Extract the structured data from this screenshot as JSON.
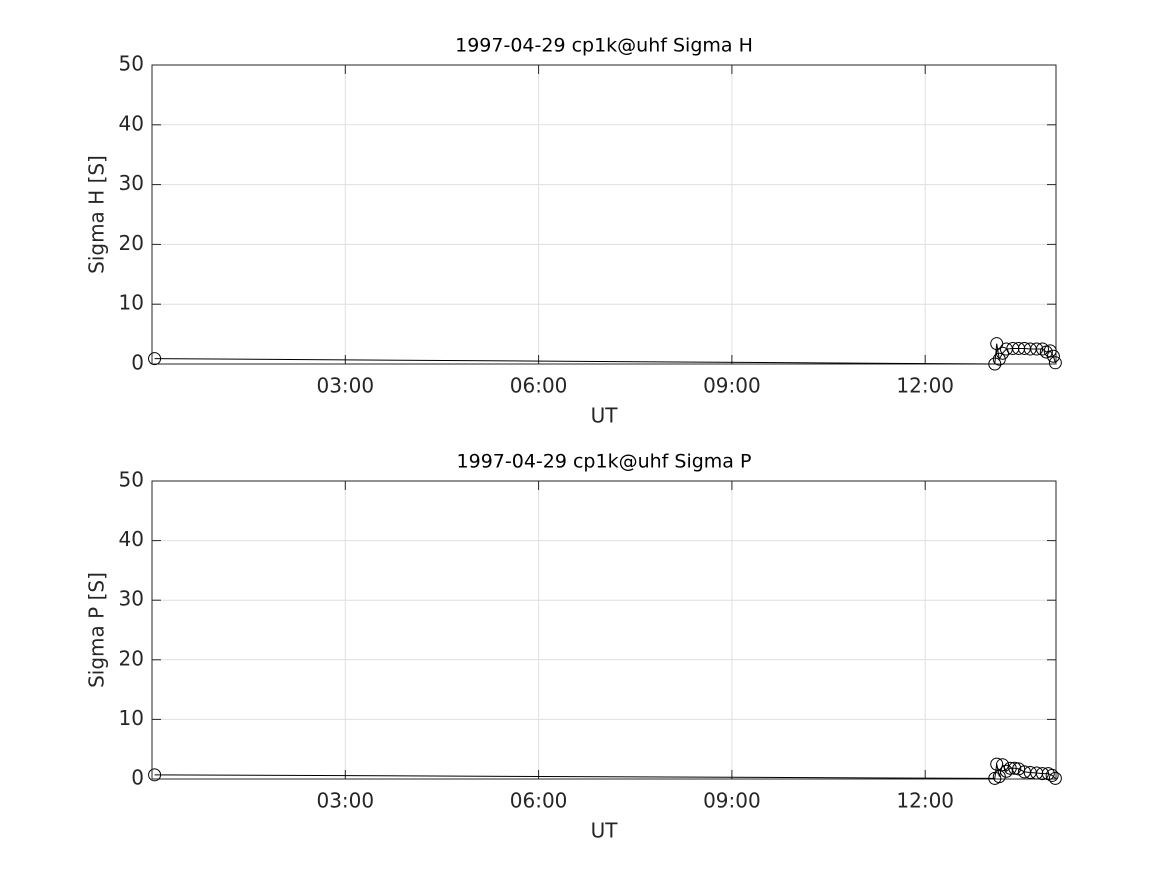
{
  "chart_data": [
    {
      "type": "line",
      "title": "1997-04-29  cp1k@uhf Sigma H",
      "xlabel": "UT",
      "ylabel": "Sigma H [S]",
      "x": [
        0.04,
        13.08,
        13.11,
        13.15,
        13.2,
        13.26,
        13.36,
        13.45,
        13.54,
        13.63,
        13.73,
        13.82,
        13.88,
        13.94,
        13.99,
        14.02
      ],
      "values": [
        0.9,
        0.0,
        3.4,
        0.8,
        1.8,
        2.5,
        2.6,
        2.6,
        2.6,
        2.5,
        2.5,
        2.5,
        2.0,
        2.2,
        1.3,
        0.2
      ],
      "color": "#000000",
      "marker": "o",
      "xlim": [
        0,
        14.03
      ],
      "xticks": [
        {
          "value": 3,
          "label": "03:00"
        },
        {
          "value": 6,
          "label": "06:00"
        },
        {
          "value": 9,
          "label": "09:00"
        },
        {
          "value": 12,
          "label": "12:00"
        }
      ],
      "ylim": [
        0,
        50
      ],
      "yticks": [
        0,
        10,
        20,
        30,
        40,
        50
      ],
      "grid": true
    },
    {
      "type": "line",
      "title": "1997-04-29  cp1k@uhf Sigma P",
      "xlabel": "UT",
      "ylabel": "Sigma P [S]",
      "x": [
        0.04,
        13.08,
        13.11,
        13.15,
        13.2,
        13.26,
        13.32,
        13.39,
        13.45,
        13.54,
        13.63,
        13.73,
        13.82,
        13.91,
        13.97,
        14.02
      ],
      "values": [
        0.7,
        0.1,
        2.5,
        0.4,
        2.4,
        1.3,
        1.8,
        1.8,
        1.7,
        1.2,
        1.1,
        1.0,
        0.9,
        0.9,
        0.6,
        0.1
      ],
      "color": "#000000",
      "marker": "o",
      "xlim": [
        0,
        14.03
      ],
      "xticks": [
        {
          "value": 3,
          "label": "03:00"
        },
        {
          "value": 6,
          "label": "06:00"
        },
        {
          "value": 9,
          "label": "09:00"
        },
        {
          "value": 12,
          "label": "12:00"
        }
      ],
      "ylim": [
        0,
        50
      ],
      "yticks": [
        0,
        10,
        20,
        30,
        40,
        50
      ],
      "grid": true
    }
  ]
}
